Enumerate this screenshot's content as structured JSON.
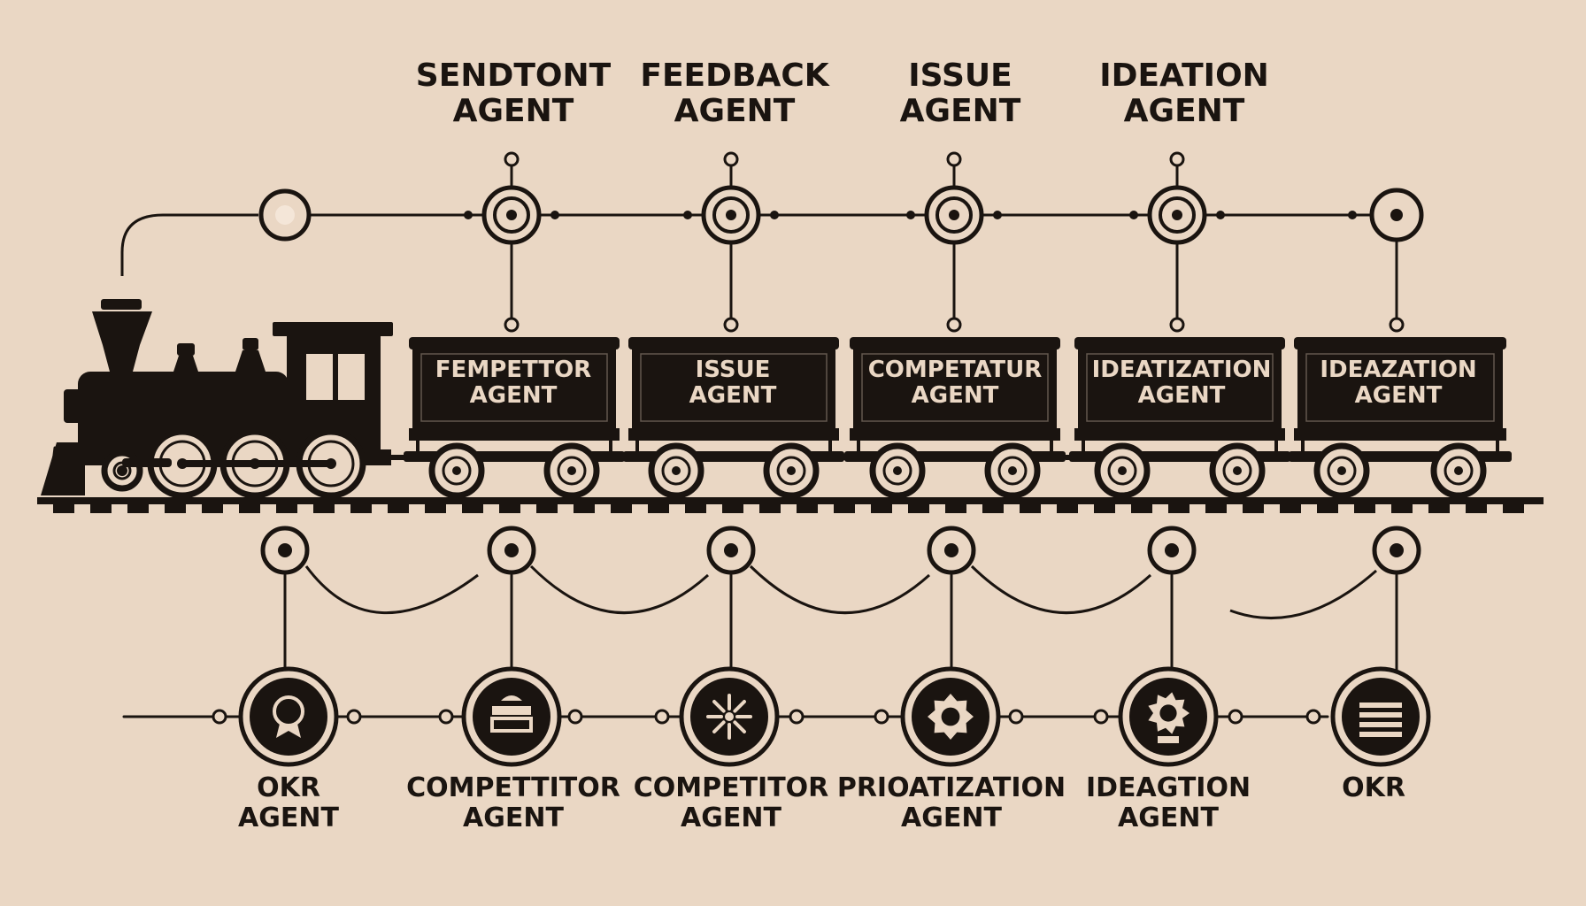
{
  "colors": {
    "background": "#ead7c4",
    "ink": "#1a1410"
  },
  "top_agents": [
    {
      "line1": "SENDTONT",
      "line2": "AGENT"
    },
    {
      "line1": "FEEDBACK",
      "line2": "AGENT"
    },
    {
      "line1": "ISSUE",
      "line2": "AGENT"
    },
    {
      "line1": "IDEATION",
      "line2": "AGENT"
    }
  ],
  "train_cars": [
    {
      "line1": "FEMPETTOR",
      "line2": "AGENT"
    },
    {
      "line1": "ISSUE",
      "line2": "AGENT"
    },
    {
      "line1": "COMPETATUR",
      "line2": "AGENT"
    },
    {
      "line1": "IDEATIZATION",
      "line2": "AGENT"
    },
    {
      "line1": "IDEAZATION",
      "line2": "AGENT"
    }
  ],
  "bottom_agents": [
    {
      "line1": "OKR",
      "line2": "AGENT",
      "icon": "medal-icon"
    },
    {
      "line1": "COMPETTITOR",
      "line2": "AGENT",
      "icon": "stack-icon"
    },
    {
      "line1": "COMPETITOR",
      "line2": "AGENT",
      "icon": "sparkle-icon"
    },
    {
      "line1": "PRIOATIZATION",
      "line2": "AGENT",
      "icon": "gear-icon"
    },
    {
      "line1": "IDEAGTION",
      "line2": "AGENT",
      "icon": "idea-gear-icon"
    },
    {
      "line1": "OKR",
      "line2": "",
      "icon": "list-icon"
    }
  ]
}
